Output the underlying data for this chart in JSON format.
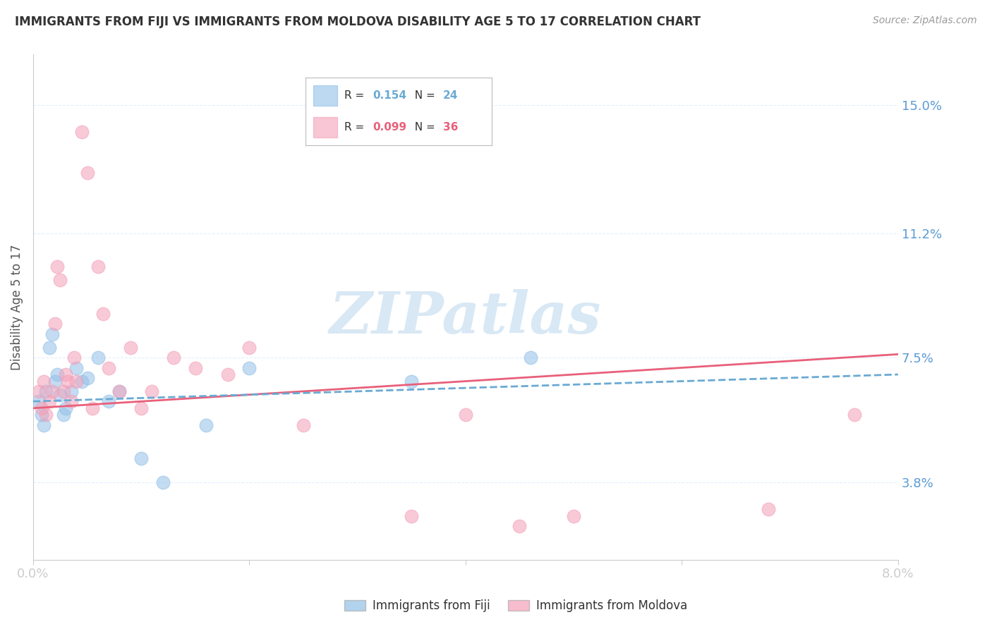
{
  "title": "IMMIGRANTS FROM FIJI VS IMMIGRANTS FROM MOLDOVA DISABILITY AGE 5 TO 17 CORRELATION CHART",
  "source": "Source: ZipAtlas.com",
  "ylabel": "Disability Age 5 to 17",
  "yticks": [
    3.8,
    7.5,
    11.2,
    15.0
  ],
  "ytick_labels": [
    "3.8%",
    "7.5%",
    "11.2%",
    "15.0%"
  ],
  "xlim": [
    0.0,
    8.0
  ],
  "ylim": [
    1.5,
    16.5
  ],
  "fiji_color": "#92C0E8",
  "moldova_color": "#F4A0B8",
  "fiji_line_color": "#6aaad4",
  "moldova_line_color": "#e8607a",
  "fiji_R": 0.154,
  "fiji_N": 24,
  "moldova_R": 0.099,
  "moldova_N": 36,
  "fiji_x": [
    0.05,
    0.08,
    0.1,
    0.12,
    0.15,
    0.18,
    0.2,
    0.22,
    0.25,
    0.28,
    0.3,
    0.35,
    0.4,
    0.45,
    0.5,
    0.6,
    0.7,
    0.8,
    1.0,
    1.2,
    1.6,
    2.0,
    3.5,
    4.6
  ],
  "fiji_y": [
    6.2,
    5.8,
    5.5,
    6.5,
    7.8,
    8.2,
    6.8,
    7.0,
    6.4,
    5.8,
    6.0,
    6.5,
    7.2,
    6.8,
    6.9,
    7.5,
    6.2,
    6.5,
    4.5,
    3.8,
    5.5,
    7.2,
    6.8,
    7.5
  ],
  "moldova_x": [
    0.05,
    0.08,
    0.1,
    0.12,
    0.15,
    0.18,
    0.2,
    0.22,
    0.25,
    0.28,
    0.3,
    0.32,
    0.35,
    0.38,
    0.4,
    0.45,
    0.5,
    0.55,
    0.6,
    0.65,
    0.7,
    0.8,
    0.9,
    1.0,
    1.1,
    1.3,
    1.5,
    1.8,
    2.0,
    2.5,
    3.5,
    4.0,
    4.5,
    5.0,
    6.8,
    7.6
  ],
  "moldova_y": [
    6.5,
    6.0,
    6.8,
    5.8,
    6.2,
    6.5,
    8.5,
    10.2,
    9.8,
    6.5,
    7.0,
    6.8,
    6.2,
    7.5,
    6.8,
    14.2,
    13.0,
    6.0,
    10.2,
    8.8,
    7.2,
    6.5,
    7.8,
    6.0,
    6.5,
    7.5,
    7.2,
    7.0,
    7.8,
    5.5,
    2.8,
    5.8,
    2.5,
    2.8,
    3.0,
    5.8
  ],
  "watermark_text": "ZIPatlas",
  "background_color": "#FFFFFF",
  "grid_color": "#DDEEFF",
  "legend_fiji_label": "Immigrants from Fiji",
  "legend_moldova_label": "Immigrants from Moldova"
}
